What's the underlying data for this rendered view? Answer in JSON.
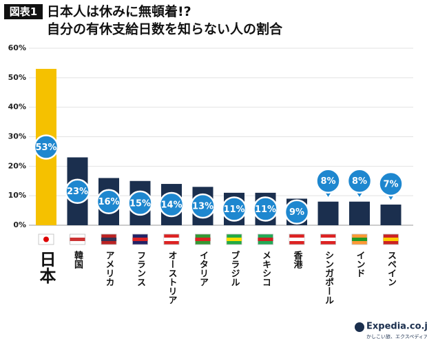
{
  "chart_data": {
    "type": "bar",
    "badge": "図表1",
    "title": "日本人は休みに無頓着!?",
    "subtitle": "自分の有休支給日数を知らない人の割合",
    "categories": [
      "日本",
      "韓国",
      "アメリカ",
      "フランス",
      "オーストリア",
      "イタリア",
      "ブラジル",
      "メキシコ",
      "香港",
      "シンガポール",
      "インド",
      "スペイン"
    ],
    "values": [
      53,
      23,
      16,
      15,
      14,
      13,
      11,
      11,
      9,
      8,
      8,
      7
    ],
    "value_labels": [
      "53%",
      "23%",
      "16%",
      "15%",
      "14%",
      "13%",
      "11%",
      "11%",
      "9%",
      "8%",
      "8%",
      "7%"
    ],
    "colors": [
      "#f5c100",
      "#1b2f4e",
      "#1b2f4e",
      "#1b2f4e",
      "#1b2f4e",
      "#1b2f4e",
      "#1b2f4e",
      "#1b2f4e",
      "#1b2f4e",
      "#1b2f4e",
      "#1b2f4e",
      "#1b2f4e"
    ],
    "ylim": [
      0,
      60
    ],
    "yticks": [
      {
        "value": 0,
        "label": "0%"
      },
      {
        "value": 10,
        "label": "10%"
      },
      {
        "value": 20,
        "label": "20%"
      },
      {
        "value": 30,
        "label": "30%"
      },
      {
        "value": 40,
        "label": "40%"
      },
      {
        "value": 50,
        "label": "50%"
      },
      {
        "value": 60,
        "label": "60%"
      }
    ],
    "grid": true,
    "logo": "Expedia.co.jp",
    "logo_tagline": "かしこい旅、エクスペディア"
  }
}
